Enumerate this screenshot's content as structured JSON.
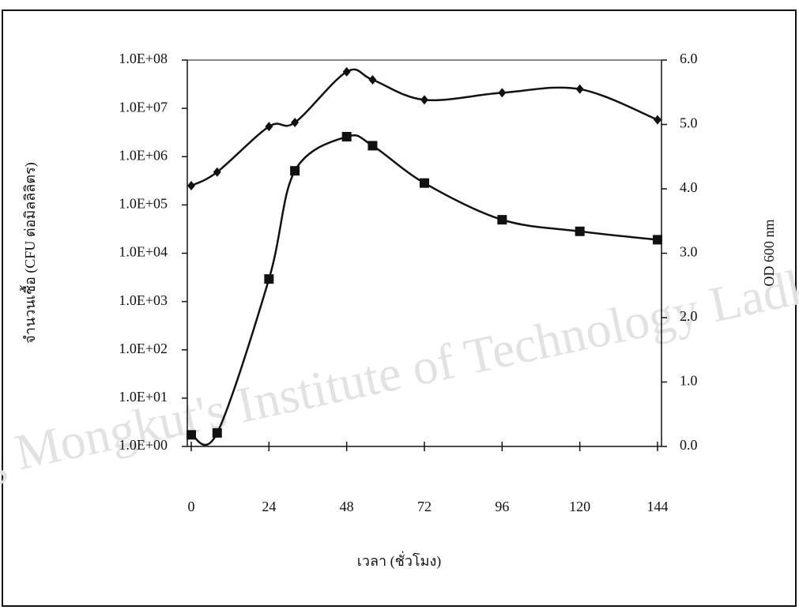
{
  "chart_data": {
    "type": "line",
    "watermark": "King Mongkut's Institute of Technology Ladkrabang",
    "x_label": "เวลา (ชั่วโมง)",
    "y_label": "จำนวนเชื้อ (CFU ต่อมิลลิลิตร)",
    "y2_label": "OD 600 nm",
    "xlim": [
      0,
      144
    ],
    "xticks": [
      0,
      24,
      48,
      72,
      96,
      120,
      144
    ],
    "ylim": [
      1,
      100000000
    ],
    "log_scale_y": true,
    "yticks": [
      {
        "value": 1,
        "label": "1.0E+00"
      },
      {
        "value": 10,
        "label": "1.0E+01"
      },
      {
        "value": 100,
        "label": "1.0E+02"
      },
      {
        "value": 1000,
        "label": "1.0E+03"
      },
      {
        "value": 10000,
        "label": "1.0E+04"
      },
      {
        "value": 100000,
        "label": "1.0E+05"
      },
      {
        "value": 1000000,
        "label": "1.0E+06"
      },
      {
        "value": 10000000,
        "label": "1.0E+07"
      },
      {
        "value": 100000000,
        "label": "1.0E+08"
      }
    ],
    "y2lim": [
      0,
      6
    ],
    "y2ticks": [
      {
        "value": 0,
        "label": "0.0"
      },
      {
        "value": 1,
        "label": "1.0"
      },
      {
        "value": 2,
        "label": "2.0"
      },
      {
        "value": 3,
        "label": "3.0"
      },
      {
        "value": 4,
        "label": "4.0"
      },
      {
        "value": 5,
        "label": "5.0"
      },
      {
        "value": 6,
        "label": "6.0"
      }
    ],
    "series": [
      {
        "color": "#111111",
        "marker": "diamond",
        "axis": "y",
        "x": [
          0,
          8,
          24,
          32,
          48,
          56,
          72,
          96,
          120,
          144
        ],
        "values": [
          250000,
          480000,
          4200000,
          5100000,
          57000000,
          39000000,
          15000000,
          21000000,
          25000000,
          5800000
        ]
      },
      {
        "color": "#111111",
        "marker": "square",
        "axis": "y2",
        "x": [
          0,
          8,
          24,
          32,
          48,
          56,
          72,
          96,
          120,
          144
        ],
        "values": [
          0.18,
          0.21,
          2.6,
          4.28,
          4.81,
          4.67,
          4.09,
          3.52,
          3.34,
          3.21
        ]
      }
    ]
  }
}
